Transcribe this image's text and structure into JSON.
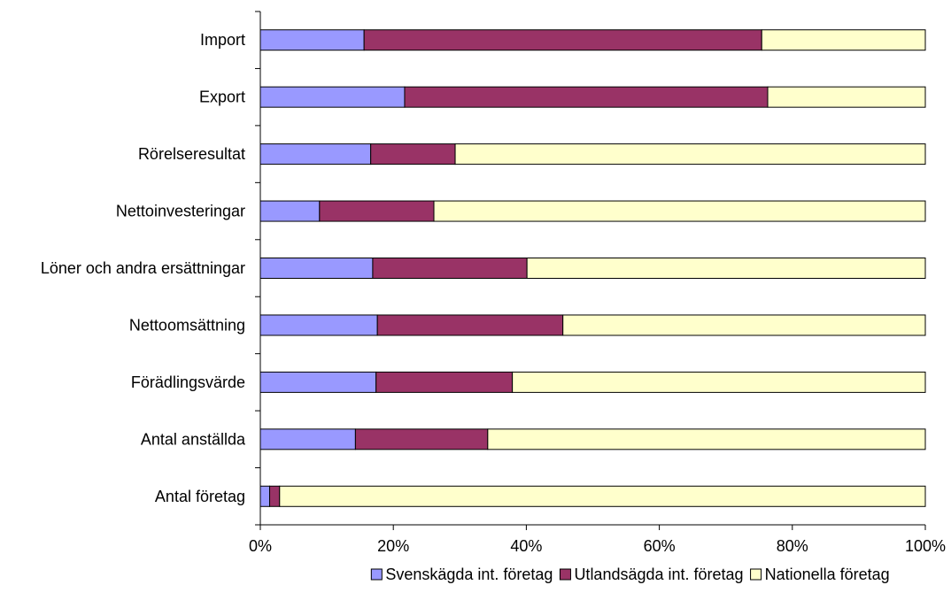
{
  "chart_data": {
    "type": "bar",
    "orientation": "horizontal",
    "stacking": "percent",
    "categories": [
      "Import",
      "Export",
      "Rörelseresultat",
      "Nettoinvesteringar",
      "Löner och andra ersättningar",
      "Nettoomsättning",
      "Förädlingsvärde",
      "Antal anställda",
      "Antal företag"
    ],
    "series": [
      {
        "name": "Svenskägda int. företag",
        "color": "#9999ff",
        "values": [
          15.6,
          21.7,
          16.6,
          8.9,
          16.9,
          17.6,
          17.4,
          14.3,
          1.4
        ]
      },
      {
        "name": "Utlandsägda int. företag",
        "color": "#993366",
        "values": [
          59.8,
          54.6,
          12.7,
          17.2,
          23.2,
          27.9,
          20.5,
          19.9,
          1.5
        ]
      },
      {
        "name": "Nationella företag",
        "color": "#ffffcc",
        "values": [
          24.6,
          23.7,
          70.7,
          73.9,
          59.9,
          54.5,
          62.1,
          65.8,
          97.1
        ]
      }
    ],
    "x_ticks": [
      "0%",
      "20%",
      "40%",
      "60%",
      "80%",
      "100%"
    ],
    "xlim": [
      0,
      100
    ],
    "title": "",
    "xlabel": "",
    "ylabel": "",
    "grid": false,
    "legend_position": "bottom"
  }
}
